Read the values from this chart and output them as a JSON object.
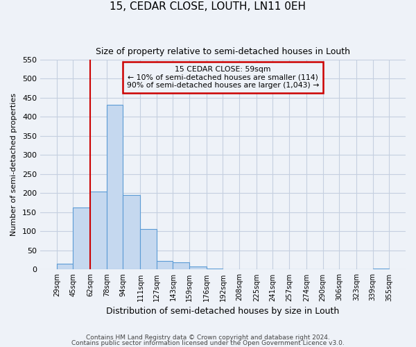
{
  "title": "15, CEDAR CLOSE, LOUTH, LN11 0EH",
  "subtitle": "Size of property relative to semi-detached houses in Louth",
  "xlabel": "Distribution of semi-detached houses by size in Louth",
  "ylabel": "Number of semi-detached properties",
  "bar_edges": [
    29,
    45,
    62,
    78,
    94,
    111,
    127,
    143,
    159,
    176,
    192,
    208,
    225,
    241,
    257,
    274,
    290,
    306,
    323,
    339,
    355
  ],
  "bar_heights": [
    15,
    163,
    204,
    432,
    196,
    107,
    22,
    19,
    8,
    2,
    0,
    0,
    0,
    0,
    0,
    0,
    0,
    0,
    0,
    2
  ],
  "bar_color": "#c5d8ef",
  "bar_edge_color": "#5b9bd5",
  "tick_labels": [
    "29sqm",
    "45sqm",
    "62sqm",
    "78sqm",
    "94sqm",
    "111sqm",
    "127sqm",
    "143sqm",
    "159sqm",
    "176sqm",
    "192sqm",
    "208sqm",
    "225sqm",
    "241sqm",
    "257sqm",
    "274sqm",
    "290sqm",
    "306sqm",
    "323sqm",
    "339sqm",
    "355sqm"
  ],
  "ylim": [
    0,
    550
  ],
  "yticks": [
    0,
    50,
    100,
    150,
    200,
    250,
    300,
    350,
    400,
    450,
    500,
    550
  ],
  "property_line_x": 62,
  "property_line_color": "#cc0000",
  "annotation_line1": "15 CEDAR CLOSE: 59sqm",
  "annotation_line2": "← 10% of semi-detached houses are smaller (114)",
  "annotation_line3": "90% of semi-detached houses are larger (1,043) →",
  "annotation_box_color": "#cc0000",
  "background_color": "#eef2f8",
  "grid_color": "#c5cfe0",
  "footer_line1": "Contains HM Land Registry data © Crown copyright and database right 2024.",
  "footer_line2": "Contains public sector information licensed under the Open Government Licence v3.0."
}
